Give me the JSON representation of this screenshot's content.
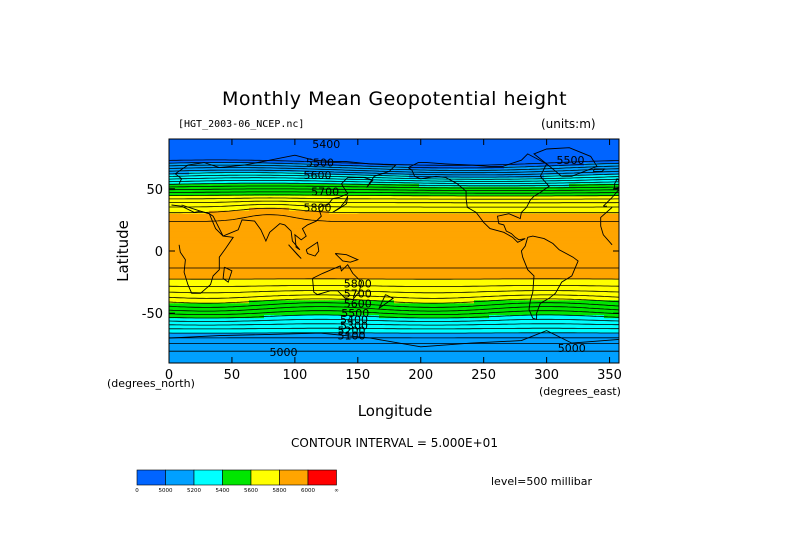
{
  "chart_data": {
    "type": "heatmap",
    "title": "Monthly Mean Geopotential height",
    "file_label": "[HGT_2003-06_NCEP.nc]",
    "units_label": "(units:m)",
    "xlabel": "Longitude",
    "ylabel": "Latitude",
    "x_unit_label": "(degrees_east)",
    "y_unit_label": "(degrees_north)",
    "xlim": [
      0,
      357.5
    ],
    "ylim": [
      -90,
      90
    ],
    "x_ticks": [
      0,
      50,
      100,
      150,
      200,
      250,
      300,
      350
    ],
    "y_ticks": [
      -50,
      0,
      50
    ],
    "contour_interval_text": "CONTOUR INTERVAL = 5.000E+01",
    "contour_interval": 50,
    "level_text": "level=500 millibar",
    "contour_labels": [
      {
        "text": "5400",
        "lon": 125,
        "lat": 86
      },
      {
        "text": "5500",
        "lon": 120,
        "lat": 71
      },
      {
        "text": "5600",
        "lon": 118,
        "lat": 61
      },
      {
        "text": "5700",
        "lon": 124,
        "lat": 48
      },
      {
        "text": "5800",
        "lon": 118,
        "lat": 35
      },
      {
        "text": "5500",
        "lon": 319,
        "lat": 73
      },
      {
        "text": "5800",
        "lon": 150,
        "lat": -26
      },
      {
        "text": "5700",
        "lon": 150,
        "lat": -34
      },
      {
        "text": "5600",
        "lon": 150,
        "lat": -42
      },
      {
        "text": "5500",
        "lon": 148,
        "lat": -50
      },
      {
        "text": "5400",
        "lon": 147,
        "lat": -55
      },
      {
        "text": "5300",
        "lon": 147,
        "lat": -60
      },
      {
        "text": "5200",
        "lon": 145,
        "lat": -64
      },
      {
        "text": "5100",
        "lon": 145,
        "lat": -68
      },
      {
        "text": "5000",
        "lon": 91,
        "lat": -81
      },
      {
        "text": "5000",
        "lon": 320,
        "lat": -78
      }
    ],
    "colorbar": {
      "colors": [
        "#0064ff",
        "#00a0ff",
        "#00ffff",
        "#00e600",
        "#ffff00",
        "#ffa500",
        "#ff0000"
      ],
      "tick_labels": [
        "0",
        "5000",
        "5200",
        "5400",
        "5600",
        "5800",
        "6000",
        "∞"
      ]
    }
  }
}
